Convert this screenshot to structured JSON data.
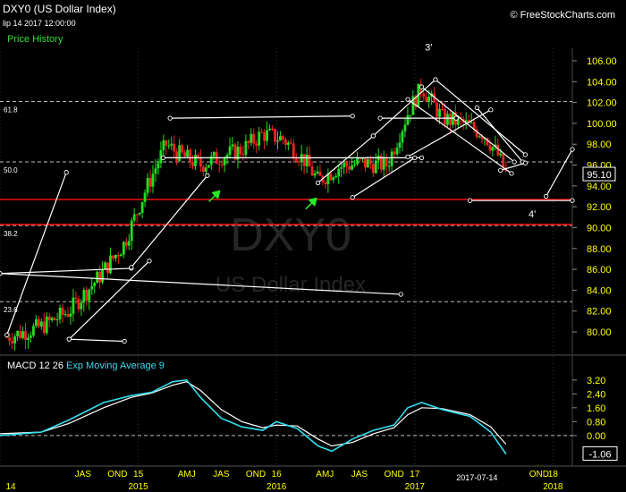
{
  "header": {
    "symbol_title": "DXY0 (US Dollar Index)",
    "datetime": "lip 14 2017 12:00:00",
    "panel_label": "Price History",
    "brand": "© FreeStockCharts.com"
  },
  "watermark": {
    "symbol": "DXY0",
    "name": "US Dollar Index"
  },
  "colors": {
    "background": "#000000",
    "up_candle": "#22dd22",
    "down_candle": "#ee2222",
    "macd_line": "#33ddee",
    "signal_line": "#ffffff",
    "support_line": "#ee1111",
    "axis_text": "#ffff00",
    "arrow": "#22ee22"
  },
  "macd_panel": {
    "label": "MACD",
    "params": "12 26",
    "signal_label": "Exp Moving Average 9"
  },
  "chart_data": {
    "type": "candlestick",
    "y_axis": {
      "ticks": [
        "106.00",
        "104.00",
        "102.00",
        "100.00",
        "98.00",
        "96.00",
        "94.00",
        "92.00",
        "90.00",
        "88.00",
        "86.00",
        "84.00",
        "82.00",
        "80.00"
      ],
      "ylim": [
        78.2,
        107.2
      ]
    },
    "last_price": "95.10",
    "fib_levels": [
      {
        "label": "61.8",
        "value": 102.1
      },
      {
        "label": "50.0",
        "value": 96.3
      },
      {
        "label": "38.2",
        "value": 90.2
      },
      {
        "label": "23.6",
        "value": 82.9
      }
    ],
    "support_lines": [
      92.7,
      90.3
    ],
    "wave_labels": [
      {
        "label": "3'",
        "t": 2017.1,
        "value": 107.0
      },
      {
        "label": "4'",
        "t": 2017.85,
        "value": 91.0
      }
    ],
    "arrows": [
      {
        "t": 2015.55,
        "value": 93.0
      },
      {
        "t": 2016.25,
        "value": 92.3
      }
    ],
    "trendlines": [
      {
        "from": [
          2014.5,
          79.3
        ],
        "to": [
          2014.9,
          79.1
        ]
      },
      {
        "from": [
          2014.5,
          79.3
        ],
        "to": [
          2015.08,
          86.8
        ]
      },
      {
        "from": [
          2014.05,
          79.7
        ],
        "to": [
          2014.48,
          95.3
        ]
      },
      {
        "from": [
          2014.0,
          85.6
        ],
        "to": [
          2016.9,
          83.6
        ]
      },
      {
        "from": [
          2014.0,
          85.6
        ],
        "to": [
          2014.95,
          86.1
        ]
      },
      {
        "from": [
          2014.95,
          86.2
        ],
        "to": [
          2015.5,
          95.0
        ]
      },
      {
        "from": [
          2015.23,
          100.5
        ],
        "to": [
          2016.55,
          100.7
        ]
      },
      {
        "from": [
          2015.18,
          96.7
        ],
        "to": [
          2017.05,
          96.7
        ]
      },
      {
        "from": [
          2016.55,
          92.9
        ],
        "to": [
          2017.0,
          96.7
        ]
      },
      {
        "from": [
          2016.3,
          94.3
        ],
        "to": [
          2016.7,
          98.8
        ]
      },
      {
        "from": [
          2016.7,
          98.8
        ],
        "to": [
          2017.15,
          104.2
        ]
      },
      {
        "from": [
          2016.75,
          100.5
        ],
        "to": [
          2017.3,
          100.5
        ]
      },
      {
        "from": [
          2017.15,
          104.2
        ],
        "to": [
          2017.8,
          97.0
        ]
      },
      {
        "from": [
          2016.95,
          102.3
        ],
        "to": [
          2017.7,
          95.2
        ]
      },
      {
        "from": [
          2017.05,
          103.5
        ],
        "to": [
          2017.72,
          96.3
        ]
      },
      {
        "from": [
          2016.95,
          96.8
        ],
        "to": [
          2017.55,
          101.3
        ]
      },
      {
        "from": [
          2017.45,
          101.5
        ],
        "to": [
          2017.78,
          96.3
        ]
      },
      {
        "from": [
          2017.62,
          95.5
        ],
        "to": [
          2017.8,
          96.2
        ]
      },
      {
        "from": [
          2017.95,
          93.0
        ],
        "to": [
          2018.14,
          97.5
        ]
      },
      {
        "from": [
          2017.4,
          92.6
        ],
        "to": [
          2018.14,
          92.6
        ]
      }
    ],
    "macd": {
      "ylim": [
        -1.5,
        3.6
      ],
      "ticks": [
        "3.20",
        "2.40",
        "1.60",
        "0.80",
        "0.00"
      ],
      "last_value": "-1.06"
    },
    "x_axis": {
      "quarter_labels": [
        {
          "t": 2014.6,
          "label": "JAS"
        },
        {
          "t": 2014.85,
          "label": "OND"
        },
        {
          "t": 2015.0,
          "label": "15"
        },
        {
          "t": 2015.35,
          "label": "AMJ"
        },
        {
          "t": 2015.6,
          "label": "JAS"
        },
        {
          "t": 2015.85,
          "label": "OND"
        },
        {
          "t": 2016.0,
          "label": "16"
        },
        {
          "t": 2016.35,
          "label": "AMJ"
        },
        {
          "t": 2016.6,
          "label": "JAS"
        },
        {
          "t": 2016.85,
          "label": "OND"
        },
        {
          "t": 2017.0,
          "label": "17"
        },
        {
          "t": 2017.9,
          "label": "OND"
        },
        {
          "t": 2018.0,
          "label": "18"
        }
      ],
      "year_labels": [
        {
          "t": 2014.0,
          "label": "14"
        },
        {
          "t": 2015.0,
          "label": "2015"
        },
        {
          "t": 2016.0,
          "label": "2016"
        },
        {
          "t": 2017.0,
          "label": "2017"
        },
        {
          "t": 2018.0,
          "label": "2018"
        }
      ],
      "cursor_date": "2017-07-14"
    }
  }
}
